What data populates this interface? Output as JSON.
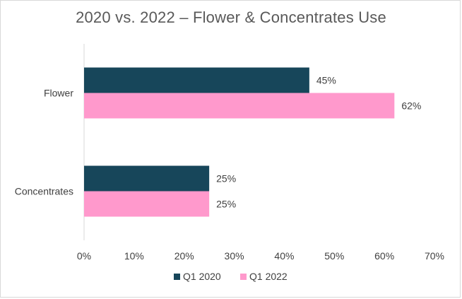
{
  "chart_data": {
    "type": "bar",
    "orientation": "horizontal",
    "title": "2020 vs. 2022 – Flower & Concentrates Use",
    "categories": [
      "Flower",
      "Concentrates"
    ],
    "series": [
      {
        "name": "Q1 2020",
        "color": "#17465a",
        "values": [
          45,
          25
        ],
        "labels": [
          "45%",
          "25%"
        ]
      },
      {
        "name": "Q1 2022",
        "color": "#ff99cc",
        "values": [
          62,
          25
        ],
        "labels": [
          "62%",
          "25%"
        ]
      }
    ],
    "xlim": [
      0,
      70
    ],
    "xticks": [
      0,
      10,
      20,
      30,
      40,
      50,
      60,
      70
    ],
    "xtick_labels": [
      "0%",
      "10%",
      "20%",
      "30%",
      "40%",
      "50%",
      "60%",
      "70%"
    ],
    "grid": false,
    "legend": "bottom"
  }
}
